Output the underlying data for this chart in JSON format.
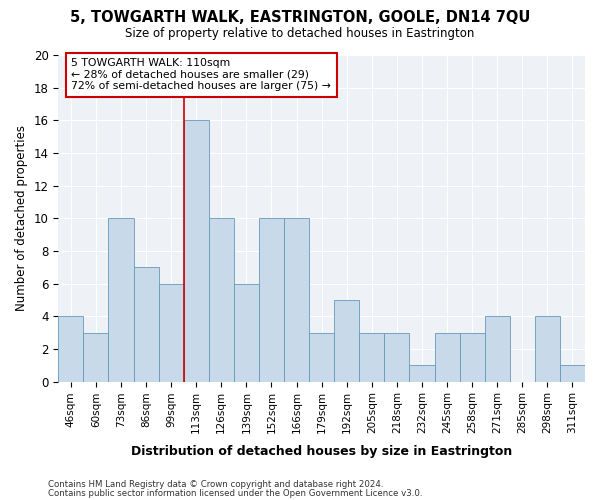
{
  "title": "5, TOWGARTH WALK, EASTRINGTON, GOOLE, DN14 7QU",
  "subtitle": "Size of property relative to detached houses in Eastrington",
  "xlabel": "Distribution of detached houses by size in Eastrington",
  "ylabel": "Number of detached properties",
  "bar_color": "#c8daea",
  "bar_edgecolor": "#6699bb",
  "categories": [
    "46sqm",
    "60sqm",
    "73sqm",
    "86sqm",
    "99sqm",
    "113sqm",
    "126sqm",
    "139sqm",
    "152sqm",
    "166sqm",
    "179sqm",
    "192sqm",
    "205sqm",
    "218sqm",
    "232sqm",
    "245sqm",
    "258sqm",
    "271sqm",
    "285sqm",
    "298sqm",
    "311sqm"
  ],
  "values": [
    4,
    3,
    10,
    7,
    6,
    16,
    10,
    6,
    10,
    10,
    3,
    5,
    3,
    3,
    1,
    3,
    3,
    4,
    0,
    4,
    1
  ],
  "annotation_line1": "5 TOWGARTH WALK: 110sqm",
  "annotation_line2": "← 28% of detached houses are smaller (29)",
  "annotation_line3": "72% of semi-detached houses are larger (75) →",
  "annotation_box_facecolor": "#ffffff",
  "annotation_box_edgecolor": "#cc0000",
  "vline_color": "#cc0000",
  "vline_x_index": 5,
  "footer1": "Contains HM Land Registry data © Crown copyright and database right 2024.",
  "footer2": "Contains public sector information licensed under the Open Government Licence v3.0.",
  "ylim": [
    0,
    20
  ],
  "yticks": [
    0,
    2,
    4,
    6,
    8,
    10,
    12,
    14,
    16,
    18,
    20
  ],
  "background_color": "#ffffff",
  "plot_bg_color": "#eef2f7",
  "grid_color": "#ffffff"
}
